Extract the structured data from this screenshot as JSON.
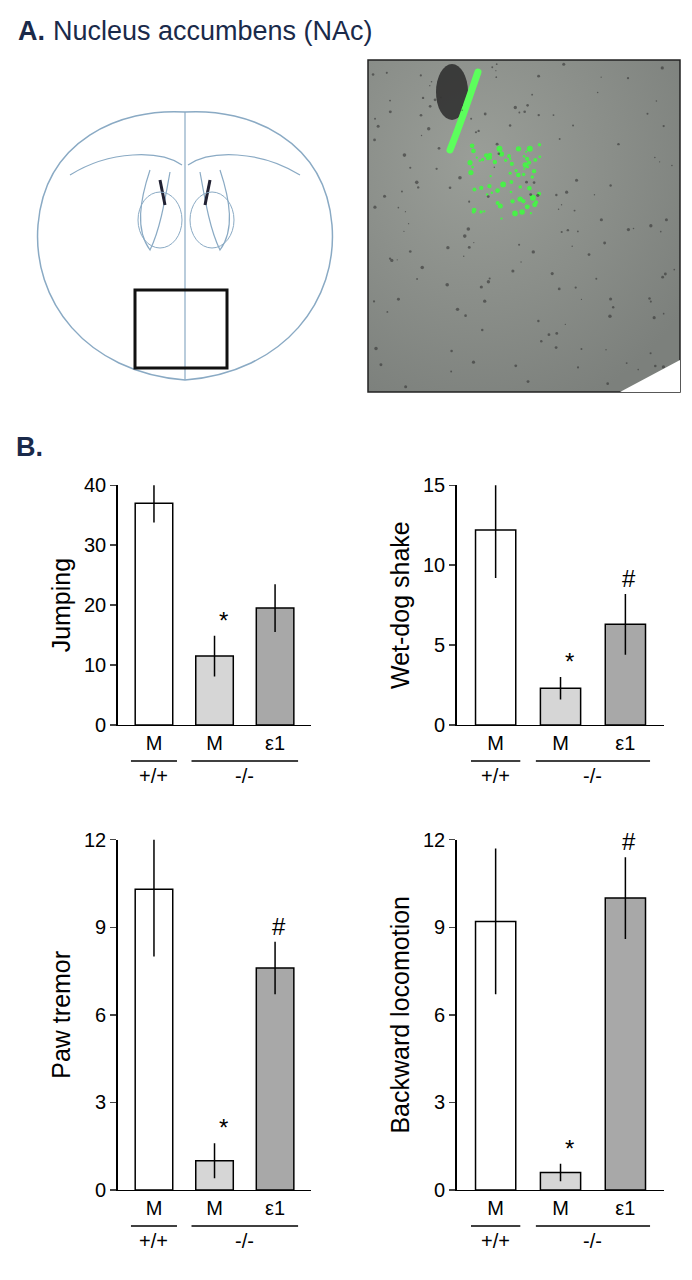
{
  "panel_a": {
    "label": "A.",
    "title": "Nucleus accumbens (NAc)"
  },
  "panel_b": {
    "label": "B."
  },
  "chart_data": [
    {
      "type": "bar",
      "ylabel": "Jumping",
      "categories": [
        "M",
        "M",
        "ε1"
      ],
      "groups": [
        "+/+",
        "-/-",
        "-/-"
      ],
      "values": [
        37,
        11.5,
        19.5
      ],
      "errors": [
        3.2,
        3.4,
        4.0
      ],
      "colors": [
        "#ffffff",
        "#d6d6d6",
        "#a8a8a8"
      ],
      "ylim": [
        0,
        40
      ],
      "yticks": [
        0,
        10,
        20,
        30,
        40
      ],
      "grid": false,
      "annotations": [
        {
          "x": 1,
          "text": "*"
        }
      ]
    },
    {
      "type": "bar",
      "ylabel": "Wet-dog shake",
      "categories": [
        "M",
        "M",
        "ε1"
      ],
      "groups": [
        "+/+",
        "-/-",
        "-/-"
      ],
      "values": [
        12.2,
        2.3,
        6.3
      ],
      "errors": [
        3.0,
        0.7,
        1.9
      ],
      "colors": [
        "#ffffff",
        "#d6d6d6",
        "#a8a8a8"
      ],
      "ylim": [
        0,
        15
      ],
      "yticks": [
        0,
        5,
        10,
        15
      ],
      "grid": false,
      "annotations": [
        {
          "x": 1,
          "text": "*"
        },
        {
          "x": 2,
          "text": "#"
        }
      ]
    },
    {
      "type": "bar",
      "ylabel": "Paw tremor",
      "categories": [
        "M",
        "M",
        "ε1"
      ],
      "groups": [
        "+/+",
        "-/-",
        "-/-"
      ],
      "values": [
        10.3,
        1.0,
        7.6
      ],
      "errors": [
        2.3,
        0.6,
        0.9
      ],
      "colors": [
        "#ffffff",
        "#d6d6d6",
        "#a8a8a8"
      ],
      "ylim": [
        0,
        12
      ],
      "yticks": [
        0,
        3,
        6,
        9,
        12
      ],
      "grid": false,
      "annotations": [
        {
          "x": 1,
          "text": "*"
        },
        {
          "x": 2,
          "text": "#"
        }
      ]
    },
    {
      "type": "bar",
      "ylabel": "Backward locomotion",
      "categories": [
        "M",
        "M",
        "ε1"
      ],
      "groups": [
        "+/+",
        "-/-",
        "-/-"
      ],
      "values": [
        9.2,
        0.6,
        10.0
      ],
      "errors": [
        2.5,
        0.3,
        1.4
      ],
      "colors": [
        "#ffffff",
        "#d6d6d6",
        "#a8a8a8"
      ],
      "ylim": [
        0,
        12
      ],
      "yticks": [
        0,
        3,
        6,
        9,
        12
      ],
      "grid": false,
      "annotations": [
        {
          "x": 1,
          "text": "*"
        },
        {
          "x": 2,
          "text": "#"
        }
      ]
    }
  ]
}
